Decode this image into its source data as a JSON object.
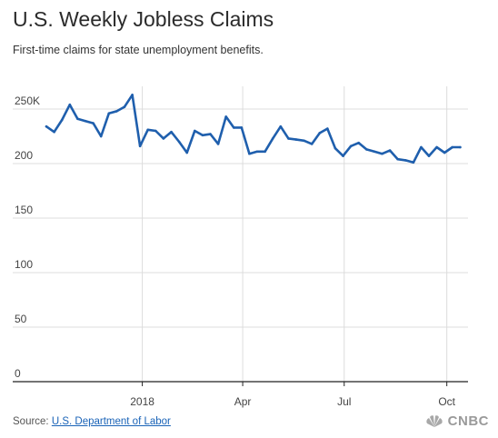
{
  "title": "U.S. Weekly Jobless Claims",
  "subtitle": "First-time claims for state unemployment benefits.",
  "source": {
    "prefix": "Source: ",
    "link_text": "U.S. Department of Labor"
  },
  "brand": "CNBC",
  "colors": {
    "line": "#1f5fad",
    "grid": "#dcdcdc",
    "axis": "#222222"
  },
  "chart_data": {
    "type": "line",
    "title": "U.S. Weekly Jobless Claims",
    "subtitle": "First-time claims for state unemployment benefits.",
    "xlabel": "",
    "ylabel": "",
    "ylim": [
      0,
      250
    ],
    "yticks": [
      0,
      50,
      100,
      150,
      200,
      250
    ],
    "ytick_labels": [
      "0",
      "50",
      "100",
      "150",
      "200",
      "250K"
    ],
    "xtick_labels": [
      "2018",
      "Apr",
      "Jul",
      "Oct"
    ],
    "xtick_dates": [
      "2018-01-01",
      "2018-04-01",
      "2018-07-01",
      "2018-10-01"
    ],
    "grid": true,
    "legend": "none",
    "series": [
      {
        "x": [
          "2017-10-07",
          "2017-10-14",
          "2017-10-21",
          "2017-10-28",
          "2017-11-04",
          "2017-11-11",
          "2017-11-18",
          "2017-11-25",
          "2017-12-02",
          "2017-12-09",
          "2017-12-16",
          "2017-12-23",
          "2017-12-30",
          "2018-01-06",
          "2018-01-13",
          "2018-01-20",
          "2018-01-27",
          "2018-02-03",
          "2018-02-10",
          "2018-02-17",
          "2018-02-24",
          "2018-03-03",
          "2018-03-10",
          "2018-03-17",
          "2018-03-24",
          "2018-03-31",
          "2018-04-07",
          "2018-04-14",
          "2018-04-21",
          "2018-04-28",
          "2018-05-05",
          "2018-05-12",
          "2018-05-19",
          "2018-05-26",
          "2018-06-02",
          "2018-06-09",
          "2018-06-16",
          "2018-06-23",
          "2018-06-30",
          "2018-07-07",
          "2018-07-14",
          "2018-07-21",
          "2018-07-28",
          "2018-08-04",
          "2018-08-11",
          "2018-08-18",
          "2018-08-25",
          "2018-09-01",
          "2018-09-08",
          "2018-09-15",
          "2018-09-22",
          "2018-09-29",
          "2018-10-06",
          "2018-10-13"
        ],
        "values": [
          234,
          229,
          240,
          254,
          241,
          239,
          237,
          225,
          246,
          248,
          252,
          263,
          216,
          231,
          230,
          223,
          229,
          220,
          210,
          230,
          226,
          227,
          218,
          243,
          233,
          233,
          209,
          211,
          211,
          223,
          234,
          223,
          222,
          221,
          218,
          228,
          232,
          214,
          207,
          216,
          219,
          213,
          211,
          209,
          212,
          204,
          203,
          201,
          215,
          207,
          215,
          210,
          215,
          215
        ]
      }
    ]
  }
}
